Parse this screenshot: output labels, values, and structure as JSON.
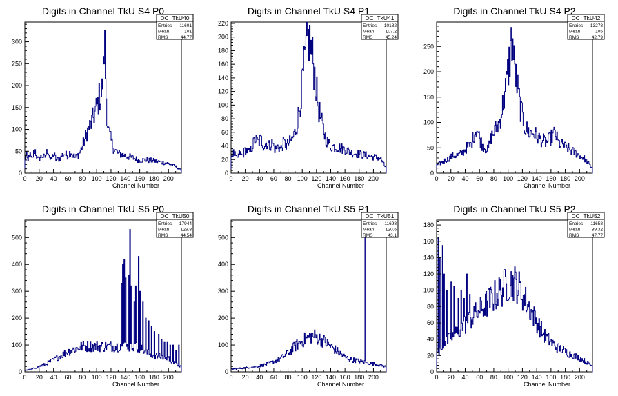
{
  "chart_data": [
    {
      "type": "histogram",
      "title": "Digits in Channel TkU S4 P0",
      "xlabel": "Channel Number",
      "xlim": [
        0,
        218
      ],
      "ylim": [
        0,
        345
      ],
      "xticks": [
        0,
        20,
        40,
        60,
        80,
        100,
        120,
        140,
        160,
        180,
        200
      ],
      "yticks": [
        0,
        50,
        100,
        150,
        200,
        250,
        300
      ],
      "stats": {
        "name": "DC_TkU40",
        "entries": "11601",
        "mean": "101",
        "rms": "44.77"
      },
      "profile": [
        [
          0,
          20
        ],
        [
          2,
          55
        ],
        [
          4,
          20
        ],
        [
          6,
          45
        ],
        [
          10,
          30
        ],
        [
          14,
          55
        ],
        [
          18,
          30
        ],
        [
          24,
          40
        ],
        [
          28,
          35
        ],
        [
          32,
          55
        ],
        [
          36,
          28
        ],
        [
          40,
          45
        ],
        [
          44,
          30
        ],
        [
          50,
          35
        ],
        [
          54,
          45
        ],
        [
          60,
          40
        ],
        [
          64,
          50
        ],
        [
          70,
          35
        ],
        [
          76,
          45
        ],
        [
          80,
          60
        ],
        [
          84,
          80
        ],
        [
          88,
          100
        ],
        [
          92,
          110
        ],
        [
          96,
          130
        ],
        [
          100,
          150
        ],
        [
          104,
          175
        ],
        [
          107,
          180
        ],
        [
          110,
          240
        ],
        [
          111,
          325
        ],
        [
          112,
          250
        ],
        [
          114,
          150
        ],
        [
          116,
          100
        ],
        [
          120,
          75
        ],
        [
          124,
          55
        ],
        [
          130,
          45
        ],
        [
          140,
          40
        ],
        [
          150,
          35
        ],
        [
          160,
          30
        ],
        [
          170,
          30
        ],
        [
          180,
          28
        ],
        [
          190,
          25
        ],
        [
          200,
          22
        ],
        [
          210,
          15
        ],
        [
          216,
          8
        ]
      ]
    },
    {
      "type": "histogram",
      "title": "Digits in Channel TkU S4 P1",
      "xlabel": "Channel Number",
      "xlim": [
        0,
        218
      ],
      "ylim": [
        0,
        222
      ],
      "xticks": [
        0,
        20,
        40,
        60,
        80,
        100,
        120,
        140,
        160,
        180,
        200
      ],
      "yticks": [
        0,
        20,
        40,
        60,
        80,
        100,
        120,
        140,
        160,
        180,
        200,
        220
      ],
      "stats": {
        "name": "DC_TkU41",
        "entries": "10182",
        "mean": "107.2",
        "rms": "45.24"
      },
      "profile": [
        [
          0,
          25
        ],
        [
          4,
          30
        ],
        [
          8,
          20
        ],
        [
          12,
          30
        ],
        [
          16,
          25
        ],
        [
          20,
          35
        ],
        [
          26,
          30
        ],
        [
          30,
          40
        ],
        [
          34,
          50
        ],
        [
          38,
          45
        ],
        [
          42,
          50
        ],
        [
          46,
          40
        ],
        [
          50,
          45
        ],
        [
          54,
          40
        ],
        [
          58,
          45
        ],
        [
          62,
          35
        ],
        [
          66,
          40
        ],
        [
          70,
          35
        ],
        [
          74,
          45
        ],
        [
          78,
          40
        ],
        [
          82,
          45
        ],
        [
          86,
          50
        ],
        [
          90,
          60
        ],
        [
          94,
          80
        ],
        [
          98,
          110
        ],
        [
          102,
          150
        ],
        [
          106,
          180
        ],
        [
          109,
          200
        ],
        [
          112,
          185
        ],
        [
          116,
          160
        ],
        [
          120,
          120
        ],
        [
          124,
          90
        ],
        [
          128,
          70
        ],
        [
          132,
          55
        ],
        [
          136,
          45
        ],
        [
          140,
          40
        ],
        [
          150,
          38
        ],
        [
          160,
          35
        ],
        [
          170,
          30
        ],
        [
          180,
          28
        ],
        [
          190,
          26
        ],
        [
          200,
          24
        ],
        [
          210,
          22
        ],
        [
          216,
          10
        ]
      ]
    },
    {
      "type": "histogram",
      "title": "Digits in Channel TkU S4 P2",
      "xlabel": "Channel Number",
      "xlim": [
        0,
        218
      ],
      "ylim": [
        0,
        298
      ],
      "xticks": [
        0,
        20,
        40,
        60,
        80,
        100,
        120,
        140,
        160,
        180,
        200
      ],
      "yticks": [
        0,
        50,
        100,
        150,
        200,
        250
      ],
      "stats": {
        "name": "DC_TkU42",
        "entries": "13278",
        "mean": "105",
        "rms": "42.79"
      },
      "profile": [
        [
          0,
          15
        ],
        [
          6,
          20
        ],
        [
          12,
          25
        ],
        [
          18,
          30
        ],
        [
          24,
          35
        ],
        [
          30,
          35
        ],
        [
          36,
          40
        ],
        [
          42,
          50
        ],
        [
          48,
          55
        ],
        [
          52,
          75
        ],
        [
          56,
          90
        ],
        [
          60,
          70
        ],
        [
          64,
          55
        ],
        [
          68,
          50
        ],
        [
          72,
          45
        ],
        [
          76,
          70
        ],
        [
          80,
          80
        ],
        [
          84,
          90
        ],
        [
          88,
          100
        ],
        [
          92,
          130
        ],
        [
          96,
          160
        ],
        [
          100,
          200
        ],
        [
          104,
          250
        ],
        [
          106,
          270
        ],
        [
          108,
          220
        ],
        [
          112,
          180
        ],
        [
          116,
          140
        ],
        [
          120,
          110
        ],
        [
          124,
          90
        ],
        [
          130,
          80
        ],
        [
          136,
          80
        ],
        [
          142,
          70
        ],
        [
          148,
          65
        ],
        [
          154,
          60
        ],
        [
          160,
          70
        ],
        [
          166,
          80
        ],
        [
          170,
          60
        ],
        [
          176,
          55
        ],
        [
          182,
          50
        ],
        [
          188,
          45
        ],
        [
          194,
          40
        ],
        [
          200,
          35
        ],
        [
          206,
          30
        ],
        [
          212,
          20
        ],
        [
          216,
          12
        ]
      ]
    },
    {
      "type": "histogram",
      "title": "Digits in Channel TkU S5 P0",
      "xlabel": "Channel Number",
      "xlim": [
        0,
        218
      ],
      "ylim": [
        0,
        565
      ],
      "xticks": [
        0,
        20,
        40,
        60,
        80,
        100,
        120,
        140,
        160,
        180,
        200
      ],
      "yticks": [
        0,
        100,
        200,
        300,
        400,
        500
      ],
      "stats": {
        "name": "DC_TkU50",
        "entries": "17944",
        "mean": "129.8",
        "rms": "44.54"
      },
      "profile": [
        [
          0,
          5
        ],
        [
          10,
          10
        ],
        [
          20,
          20
        ],
        [
          30,
          30
        ],
        [
          40,
          45
        ],
        [
          50,
          60
        ],
        [
          60,
          75
        ],
        [
          70,
          85
        ],
        [
          80,
          95
        ],
        [
          90,
          95
        ],
        [
          100,
          95
        ],
        [
          110,
          95
        ],
        [
          120,
          95
        ],
        [
          130,
          95
        ],
        [
          134,
          100
        ],
        [
          140,
          95
        ],
        [
          150,
          95
        ],
        [
          160,
          90
        ],
        [
          170,
          70
        ],
        [
          180,
          60
        ],
        [
          190,
          55
        ],
        [
          200,
          50
        ],
        [
          210,
          30
        ],
        [
          216,
          20
        ]
      ],
      "spikes": [
        [
          134,
          330
        ],
        [
          136,
          400
        ],
        [
          138,
          420
        ],
        [
          140,
          350
        ],
        [
          144,
          360
        ],
        [
          146,
          530
        ],
        [
          148,
          320
        ],
        [
          152,
          260
        ],
        [
          154,
          320
        ],
        [
          158,
          430
        ],
        [
          160,
          300
        ],
        [
          164,
          260
        ],
        [
          168,
          200
        ],
        [
          172,
          190
        ],
        [
          176,
          170
        ],
        [
          180,
          150
        ],
        [
          186,
          140
        ],
        [
          190,
          120
        ],
        [
          194,
          110
        ],
        [
          198,
          110
        ],
        [
          202,
          100
        ],
        [
          206,
          100
        ],
        [
          210,
          80
        ],
        [
          214,
          100
        ]
      ]
    },
    {
      "type": "histogram",
      "title": "Digits in Channel TkU S5 P1",
      "xlabel": "Channel Number",
      "xlim": [
        0,
        218
      ],
      "ylim": [
        0,
        565
      ],
      "xticks": [
        0,
        20,
        40,
        60,
        80,
        100,
        120,
        140,
        160,
        180,
        200
      ],
      "yticks": [
        0,
        100,
        200,
        300,
        400,
        500
      ],
      "stats": {
        "name": "DC_TkU51",
        "entries": "11698",
        "mean": "120.6",
        "rms": "43.1"
      },
      "profile": [
        [
          0,
          10
        ],
        [
          10,
          12
        ],
        [
          20,
          15
        ],
        [
          30,
          18
        ],
        [
          40,
          22
        ],
        [
          50,
          28
        ],
        [
          60,
          38
        ],
        [
          70,
          50
        ],
        [
          80,
          70
        ],
        [
          90,
          95
        ],
        [
          100,
          115
        ],
        [
          110,
          130
        ],
        [
          114,
          135
        ],
        [
          120,
          130
        ],
        [
          130,
          115
        ],
        [
          140,
          95
        ],
        [
          150,
          75
        ],
        [
          160,
          55
        ],
        [
          170,
          45
        ],
        [
          180,
          40
        ],
        [
          190,
          35
        ],
        [
          200,
          30
        ],
        [
          210,
          25
        ],
        [
          216,
          20
        ]
      ],
      "spikes": [
        [
          188,
          520
        ]
      ]
    },
    {
      "type": "histogram",
      "title": "Digits in Channel TkU S5 P2",
      "xlabel": "Channel Number",
      "xlim": [
        0,
        218
      ],
      "ylim": [
        0,
        186
      ],
      "xticks": [
        0,
        20,
        40,
        60,
        80,
        100,
        120,
        140,
        160,
        180,
        200
      ],
      "yticks": [
        0,
        20,
        40,
        60,
        80,
        100,
        120,
        140,
        160,
        180
      ],
      "stats": {
        "name": "DC_TkU52",
        "entries": "11658",
        "mean": "89.32",
        "rms": "47.77"
      },
      "profile": [
        [
          0,
          20
        ],
        [
          6,
          30
        ],
        [
          12,
          35
        ],
        [
          18,
          40
        ],
        [
          24,
          45
        ],
        [
          30,
          50
        ],
        [
          36,
          55
        ],
        [
          42,
          60
        ],
        [
          48,
          65
        ],
        [
          54,
          70
        ],
        [
          60,
          75
        ],
        [
          66,
          80
        ],
        [
          72,
          85
        ],
        [
          78,
          90
        ],
        [
          84,
          95
        ],
        [
          90,
          100
        ],
        [
          96,
          105
        ],
        [
          102,
          110
        ],
        [
          108,
          110
        ],
        [
          114,
          105
        ],
        [
          120,
          95
        ],
        [
          126,
          85
        ],
        [
          132,
          75
        ],
        [
          138,
          65
        ],
        [
          144,
          55
        ],
        [
          150,
          45
        ],
        [
          156,
          40
        ],
        [
          162,
          35
        ],
        [
          168,
          30
        ],
        [
          174,
          28
        ],
        [
          180,
          25
        ],
        [
          186,
          22
        ],
        [
          192,
          20
        ],
        [
          198,
          18
        ],
        [
          204,
          15
        ],
        [
          210,
          12
        ],
        [
          216,
          8
        ]
      ],
      "spikes": [
        [
          2,
          165
        ],
        [
          4,
          140
        ],
        [
          8,
          155
        ],
        [
          10,
          120
        ],
        [
          14,
          100
        ],
        [
          20,
          110
        ],
        [
          24,
          105
        ],
        [
          30,
          90
        ],
        [
          34,
          100
        ],
        [
          38,
          90
        ],
        [
          42,
          120
        ],
        [
          46,
          95
        ],
        [
          52,
          80
        ],
        [
          58,
          75
        ]
      ]
    }
  ]
}
